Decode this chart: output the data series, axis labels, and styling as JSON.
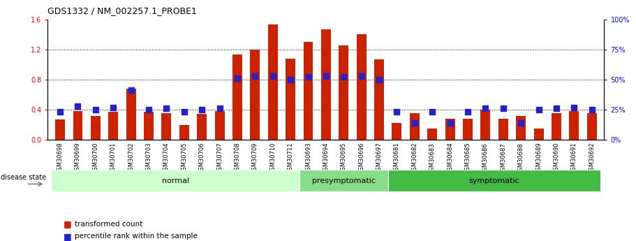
{
  "title": "GDS1332 / NM_002257.1_PROBE1",
  "samples": [
    "GSM30698",
    "GSM30699",
    "GSM30700",
    "GSM30701",
    "GSM30702",
    "GSM30703",
    "GSM30704",
    "GSM30705",
    "GSM30706",
    "GSM30707",
    "GSM30708",
    "GSM30709",
    "GSM30710",
    "GSM30711",
    "GSM30693",
    "GSM30694",
    "GSM30695",
    "GSM30696",
    "GSM30697",
    "GSM30681",
    "GSM30682",
    "GSM30683",
    "GSM30684",
    "GSM30685",
    "GSM30686",
    "GSM30687",
    "GSM30688",
    "GSM30689",
    "GSM30690",
    "GSM30691",
    "GSM30692"
  ],
  "bar_values": [
    0.27,
    0.38,
    0.32,
    0.37,
    0.68,
    0.37,
    0.35,
    0.2,
    0.34,
    0.38,
    1.13,
    1.2,
    1.53,
    1.08,
    1.3,
    1.47,
    1.25,
    1.4,
    1.07,
    0.22,
    0.35,
    0.15,
    0.28,
    0.28,
    0.4,
    0.28,
    0.32,
    0.15,
    0.35,
    0.38,
    0.35
  ],
  "percentile_values": [
    23,
    28,
    25,
    27,
    41,
    25,
    26,
    23,
    25,
    26,
    51,
    53,
    53,
    50,
    52,
    53,
    52,
    53,
    50,
    23,
    14,
    23,
    14,
    23,
    26,
    26,
    14,
    25,
    26,
    27,
    25
  ],
  "groups": [
    {
      "name": "normal",
      "start": 0,
      "end": 14,
      "color": "#ccffcc"
    },
    {
      "name": "presymptomatic",
      "start": 14,
      "end": 19,
      "color": "#88dd88"
    },
    {
      "name": "symptomatic",
      "start": 19,
      "end": 31,
      "color": "#44bb44"
    }
  ],
  "bar_color": "#cc2200",
  "dot_color": "#2222cc",
  "ylim_left": [
    0,
    1.6
  ],
  "ylim_right": [
    0,
    100
  ],
  "yticks_left": [
    0,
    0.4,
    0.8,
    1.2,
    1.6
  ],
  "yticks_right": [
    0,
    25,
    50,
    75,
    100
  ],
  "grid_values": [
    0.4,
    0.8,
    1.2
  ],
  "bar_width": 0.55,
  "dot_size": 30,
  "legend_labels": [
    "transformed count",
    "percentile rank within the sample"
  ],
  "disease_state_label": "disease state"
}
